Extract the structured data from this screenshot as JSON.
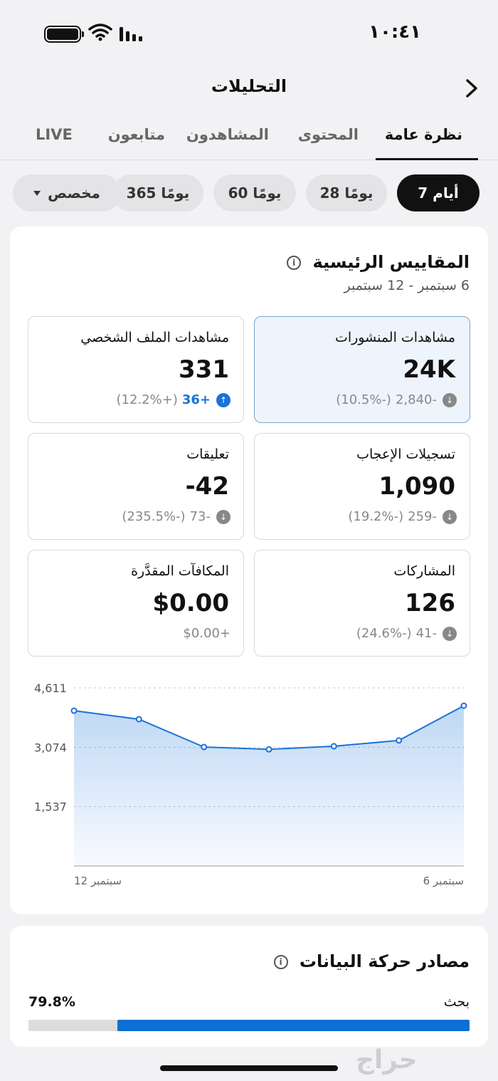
{
  "status": {
    "time": "١٠:٤١"
  },
  "header": {
    "title": "التحليلات"
  },
  "tabs": [
    {
      "label": "نظرة عامة",
      "active": true
    },
    {
      "label": "المحتوى"
    },
    {
      "label": "المشاهدون"
    },
    {
      "label": "متابعون"
    },
    {
      "label": "LIVE"
    }
  ],
  "chips": [
    {
      "label": "7 أيام",
      "active": true
    },
    {
      "label": "28 يومًا"
    },
    {
      "label": "60 يومًا"
    },
    {
      "label": "365 يومًا"
    },
    {
      "label": "مخصص",
      "dropdown": true
    }
  ],
  "key_metrics": {
    "title": "المقاييس الرئيسية",
    "date_range": "6 سبتمبر - 12 سبتمبر",
    "items": [
      {
        "label": "مشاهدات المنشورات",
        "value": "24K",
        "delta": "-2,840",
        "pct": "(-10.5%)",
        "trend": "down",
        "selected": true
      },
      {
        "label": "مشاهدات الملف الشخصي",
        "value": "331",
        "delta": "+36",
        "pct": "(+12.2%)",
        "trend": "up"
      },
      {
        "label": "تسجيلات الإعجاب",
        "value": "1,090",
        "delta": "-259",
        "pct": "(-19.2%)",
        "trend": "down"
      },
      {
        "label": "تعليقات",
        "value": "-42",
        "delta": "-73",
        "pct": "(-235.5%)",
        "trend": "down"
      },
      {
        "label": "المشاركات",
        "value": "126",
        "delta": "-41",
        "pct": "(-24.6%)",
        "trend": "down"
      },
      {
        "label": "المكافآت المقدَّرة",
        "value": "$0.00",
        "delta": "+$0.00",
        "pct": "",
        "trend": "none"
      }
    ]
  },
  "chart_data": {
    "type": "area",
    "x": [
      "6 سبتمبر",
      "7 سبتمبر",
      "8 سبتمبر",
      "9 سبتمبر",
      "10 سبتمبر",
      "11 سبتمبر",
      "12 سبتمبر"
    ],
    "x_tick_labels": [
      "سبتمبر 6",
      "سبتمبر 12"
    ],
    "y_tick_labels": [
      "4,611",
      "3,074",
      "1,537"
    ],
    "y_ticks": [
      4611,
      3074,
      1537
    ],
    "values": [
      4150,
      3250,
      3100,
      3020,
      3080,
      3800,
      4020
    ],
    "ylim": [
      0,
      4611
    ],
    "color": "#1a73d9",
    "grid": true,
    "x_direction": "rtl"
  },
  "traffic": {
    "title": "مصادر حركة البيانات",
    "items": [
      {
        "label": "بحث",
        "value": "79.8%",
        "fraction": 0.798
      }
    ]
  },
  "watermark": "حراج",
  "colors": {
    "accent": "#1a73d9",
    "bar": "#0b6fd6"
  }
}
